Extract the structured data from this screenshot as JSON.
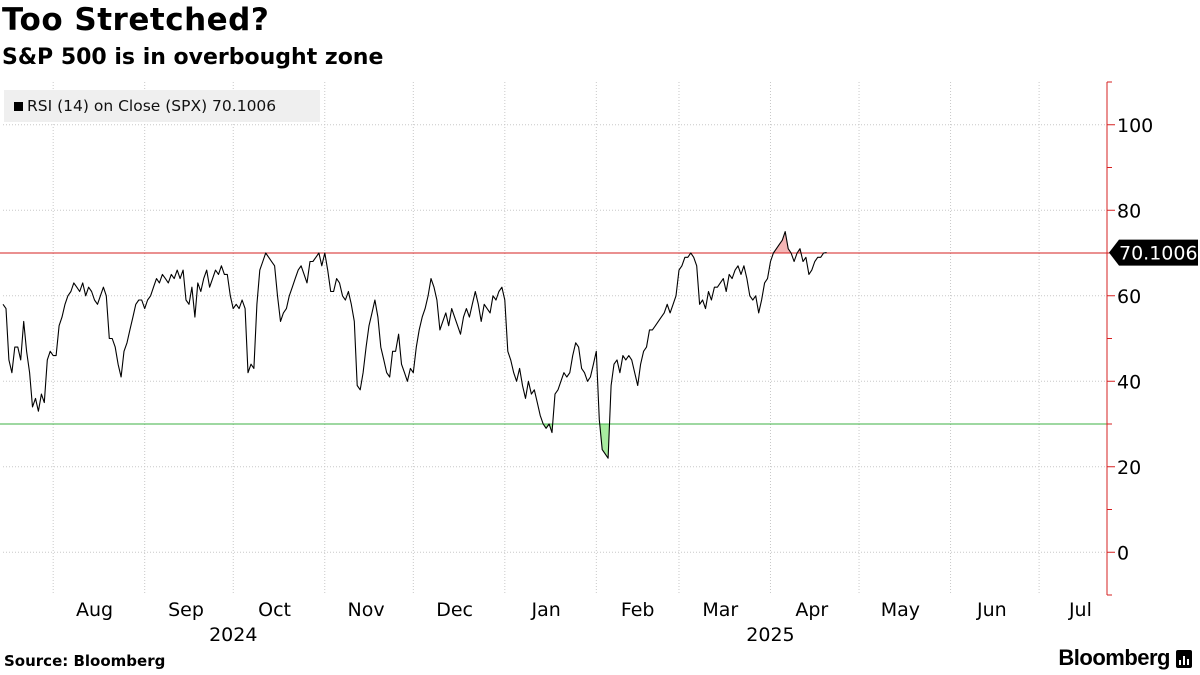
{
  "chart_data": {
    "type": "line",
    "title": "Too Stretched?",
    "subtitle": "S&P 500 is in overbought zone",
    "legend": {
      "label": "RSI (14)  on Close (SPX) 70.1006",
      "placement": "top-left"
    },
    "series": [
      {
        "name": "RSI (14)  on Close (SPX)",
        "color": "#000000",
        "x_start": "2024-07-15",
        "x_step_days": 1,
        "values": [
          58,
          57,
          45,
          42,
          48,
          48,
          45,
          54,
          47,
          42,
          34,
          36,
          33,
          37,
          35,
          45,
          47,
          46,
          46,
          53,
          55,
          58,
          60,
          61,
          63,
          62,
          61,
          63,
          60,
          62,
          61,
          59,
          58,
          60,
          62,
          60,
          50,
          50,
          48,
          44,
          41,
          47,
          49,
          52,
          55,
          58,
          59,
          59,
          57,
          59,
          60,
          62,
          64,
          63,
          65,
          64,
          63,
          65,
          64,
          66,
          64,
          66,
          59,
          58,
          62,
          55,
          63,
          61,
          64,
          66,
          62,
          64,
          66,
          65,
          67,
          65,
          65,
          60,
          57,
          58,
          57,
          59,
          57,
          42,
          44,
          43,
          58,
          66,
          68,
          70,
          69,
          68,
          67,
          60,
          54,
          56,
          57,
          60,
          62,
          64,
          66,
          67,
          65,
          63,
          68,
          68,
          69,
          70,
          67,
          70,
          66,
          61,
          61,
          64,
          63,
          60,
          59,
          61,
          58,
          54,
          39,
          38,
          42,
          48,
          53,
          56,
          59,
          55,
          48,
          45,
          42,
          41,
          47,
          47,
          51,
          44,
          42,
          40,
          43,
          42,
          48,
          52,
          55,
          57,
          60,
          64,
          62,
          59,
          52,
          54,
          56,
          53,
          57,
          55,
          53,
          51,
          55,
          57,
          55,
          58,
          61,
          58,
          54,
          58,
          57,
          56,
          60,
          59,
          61,
          62,
          59,
          47,
          45,
          42,
          40,
          43,
          39,
          36,
          40,
          37,
          38,
          35,
          32,
          30,
          29,
          30,
          28,
          37,
          38,
          40,
          42,
          41,
          42,
          46,
          49,
          48,
          43,
          42,
          40,
          41,
          44,
          47,
          31,
          24,
          23,
          22,
          39,
          44,
          45,
          42,
          46,
          45,
          46,
          45,
          42,
          39,
          44,
          47,
          48,
          52,
          52,
          53,
          54,
          55,
          56,
          58,
          56,
          58,
          60,
          66,
          67,
          69,
          69,
          70,
          69,
          67,
          58,
          59,
          57,
          61,
          59,
          62,
          62,
          63,
          64,
          61,
          65,
          64,
          66,
          67,
          65,
          67,
          64,
          60,
          59,
          60,
          56,
          59,
          63,
          64,
          68,
          70,
          71,
          72,
          73,
          75,
          71,
          70,
          68,
          70,
          71,
          68,
          69,
          65,
          66,
          68,
          69,
          69,
          70,
          70.1006
        ],
        "last_value": 70.1006
      }
    ],
    "reference_lines": [
      {
        "value": 70,
        "color": "#d62020",
        "meaning": "overbought"
      },
      {
        "value": 30,
        "color": "#3cb043",
        "meaning": "oversold"
      }
    ],
    "fills": [
      {
        "condition": "above_70",
        "color": "#f4b6b6"
      },
      {
        "condition": "below_30",
        "color": "#a8eca0"
      }
    ],
    "x_axis": {
      "tick_labels": [
        "Aug",
        "Sep",
        "Oct",
        "Nov",
        "Dec",
        "Jan",
        "Feb",
        "Mar",
        "Apr",
        "May",
        "Jun",
        "Jul"
      ],
      "tick_dates": [
        "2024-08-15",
        "2024-09-15",
        "2024-10-15",
        "2024-11-15",
        "2024-12-15",
        "2025-01-15",
        "2025-02-15",
        "2025-03-15",
        "2025-04-15",
        "2025-05-15",
        "2025-06-15",
        "2025-07-15"
      ],
      "gridline_dates": [
        "2024-08-01",
        "2024-09-01",
        "2024-10-01",
        "2024-11-01",
        "2024-12-01",
        "2025-01-01",
        "2025-02-01",
        "2025-03-01",
        "2025-04-01",
        "2025-05-01",
        "2025-06-01",
        "2025-07-01"
      ],
      "year_labels": [
        {
          "label": "2024",
          "date": "2024-10-01"
        },
        {
          "label": "2025",
          "date": "2025-04-01"
        }
      ],
      "range": [
        "2024-07-15",
        "2025-07-24"
      ]
    },
    "y_axis": {
      "position": "right",
      "ticks": [
        0,
        20,
        40,
        60,
        80,
        100
      ],
      "ylim": [
        -10,
        110
      ],
      "axis_color": "#d62020"
    },
    "grid": {
      "vertical": true,
      "horizontal": true,
      "style": "dotted"
    },
    "value_tag": {
      "label": "70.1006",
      "value": 70.1006
    }
  },
  "footer": {
    "source": "Source: Bloomberg",
    "brand": "Bloomberg"
  }
}
